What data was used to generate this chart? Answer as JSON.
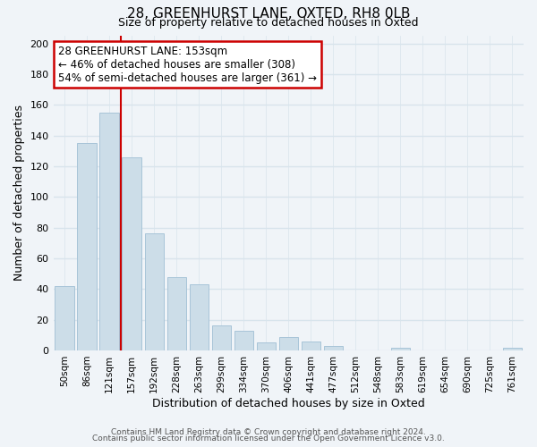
{
  "title1": "28, GREENHURST LANE, OXTED, RH8 0LB",
  "title2": "Size of property relative to detached houses in Oxted",
  "xlabel": "Distribution of detached houses by size in Oxted",
  "ylabel": "Number of detached properties",
  "bar_labels": [
    "50sqm",
    "86sqm",
    "121sqm",
    "157sqm",
    "192sqm",
    "228sqm",
    "263sqm",
    "299sqm",
    "334sqm",
    "370sqm",
    "406sqm",
    "441sqm",
    "477sqm",
    "512sqm",
    "548sqm",
    "583sqm",
    "619sqm",
    "654sqm",
    "690sqm",
    "725sqm",
    "761sqm"
  ],
  "bar_values": [
    42,
    135,
    155,
    126,
    76,
    48,
    43,
    16,
    13,
    5,
    9,
    6,
    3,
    0,
    0,
    2,
    0,
    0,
    0,
    0,
    2
  ],
  "bar_color": "#ccdde8",
  "bar_edge_color": "#a8c4d8",
  "vline_color": "#cc0000",
  "ylim": [
    0,
    205
  ],
  "yticks": [
    0,
    20,
    40,
    60,
    80,
    100,
    120,
    140,
    160,
    180,
    200
  ],
  "annotation_title": "28 GREENHURST LANE: 153sqm",
  "annotation_line1": "← 46% of detached houses are smaller (308)",
  "annotation_line2": "54% of semi-detached houses are larger (361) →",
  "annotation_box_color": "#ffffff",
  "annotation_box_edge": "#cc0000",
  "footer1": "Contains HM Land Registry data © Crown copyright and database right 2024.",
  "footer2": "Contains public sector information licensed under the Open Government Licence v3.0.",
  "background_color": "#f0f4f8",
  "grid_color": "#d8e4ec",
  "title1_fontsize": 11,
  "title2_fontsize": 9
}
